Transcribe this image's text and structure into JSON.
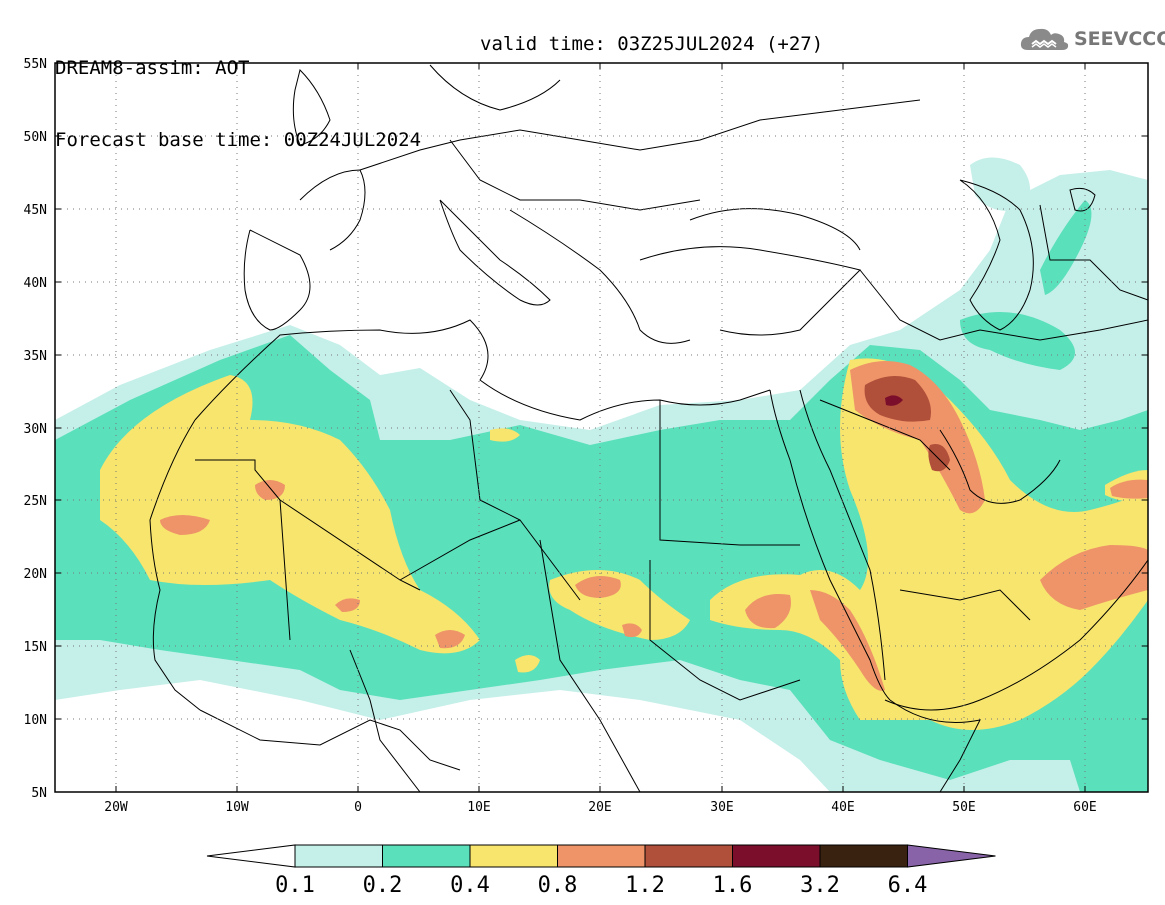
{
  "header": {
    "line1": "DREAM8-assim: AOT",
    "line2": "Forecast base time: 00Z24JUL2024",
    "valid": "valid time: 03Z25JUL2024 (+27)"
  },
  "logo": {
    "text": "SEEVCCC",
    "icon": "cloud-icon"
  },
  "map": {
    "lat_labels": [
      "55N",
      "50N",
      "45N",
      "40N",
      "35N",
      "30N",
      "25N",
      "20N",
      "15N",
      "10N",
      "5N"
    ],
    "lon_labels": [
      "20W",
      "10W",
      "0",
      "10E",
      "20E",
      "30E",
      "40E",
      "50E",
      "60E"
    ],
    "lat_range": [
      5,
      55
    ],
    "lon_range": [
      -25,
      65
    ],
    "grid": "dotted"
  },
  "colorbar": {
    "labels": [
      "0.1",
      "0.2",
      "0.4",
      "0.8",
      "1.2",
      "1.6",
      "3.2",
      "6.4"
    ],
    "colors": [
      "#ffffff",
      "#c5efe9",
      "#5ae0bb",
      "#f7e56e",
      "#ee9468",
      "#b04f3a",
      "#7b0e2a",
      "#3a2210",
      "#8863a8"
    ]
  },
  "colors": {
    "c01": "#c5efe9",
    "c02": "#5ae0bb",
    "c04": "#f7e56e",
    "c08": "#ee9468",
    "c12": "#b04f3a",
    "c16": "#7b0e2a"
  }
}
